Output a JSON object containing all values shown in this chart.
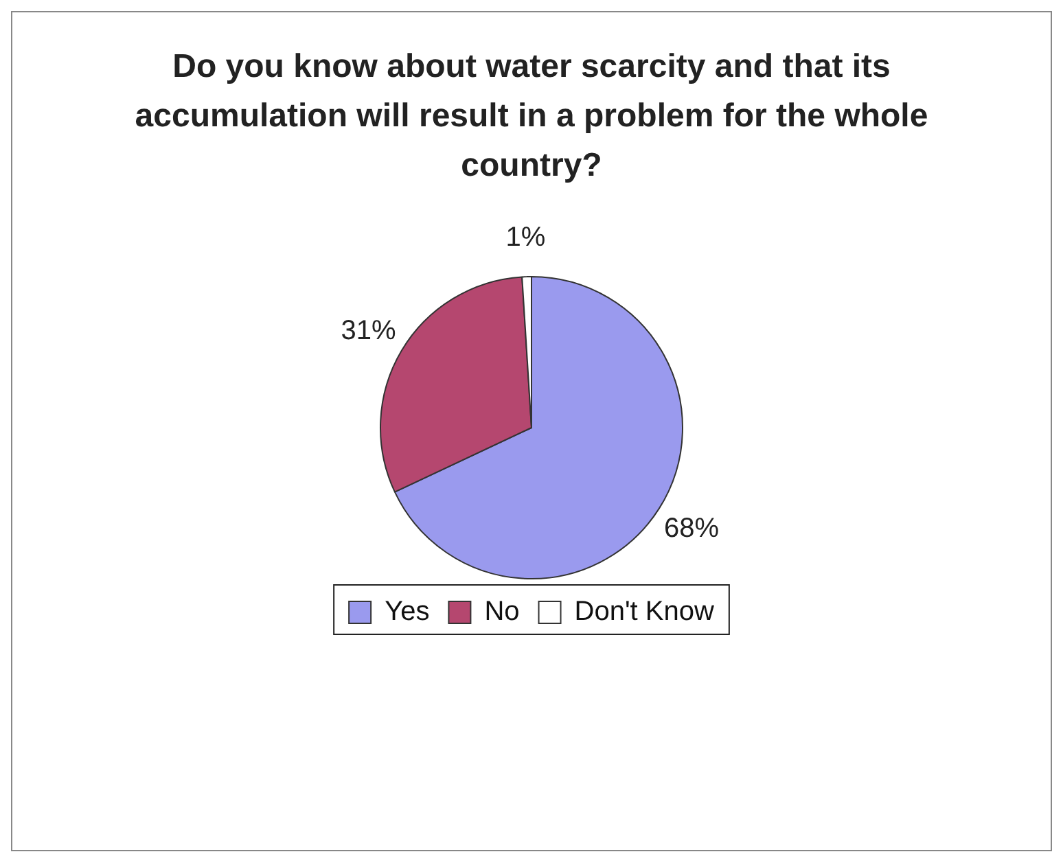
{
  "chart_data": {
    "type": "pie",
    "title": "Do you know about water scarcity and that its accumulation will result in a problem for the whole country?",
    "categories": [
      "Yes",
      "No",
      "Don't Know"
    ],
    "values": [
      68,
      31,
      1
    ],
    "colors": [
      "#9a9aee",
      "#b5476f",
      "#ffffff"
    ],
    "value_labels": [
      "68%",
      "31%",
      "1%"
    ],
    "legend": "bottom"
  }
}
